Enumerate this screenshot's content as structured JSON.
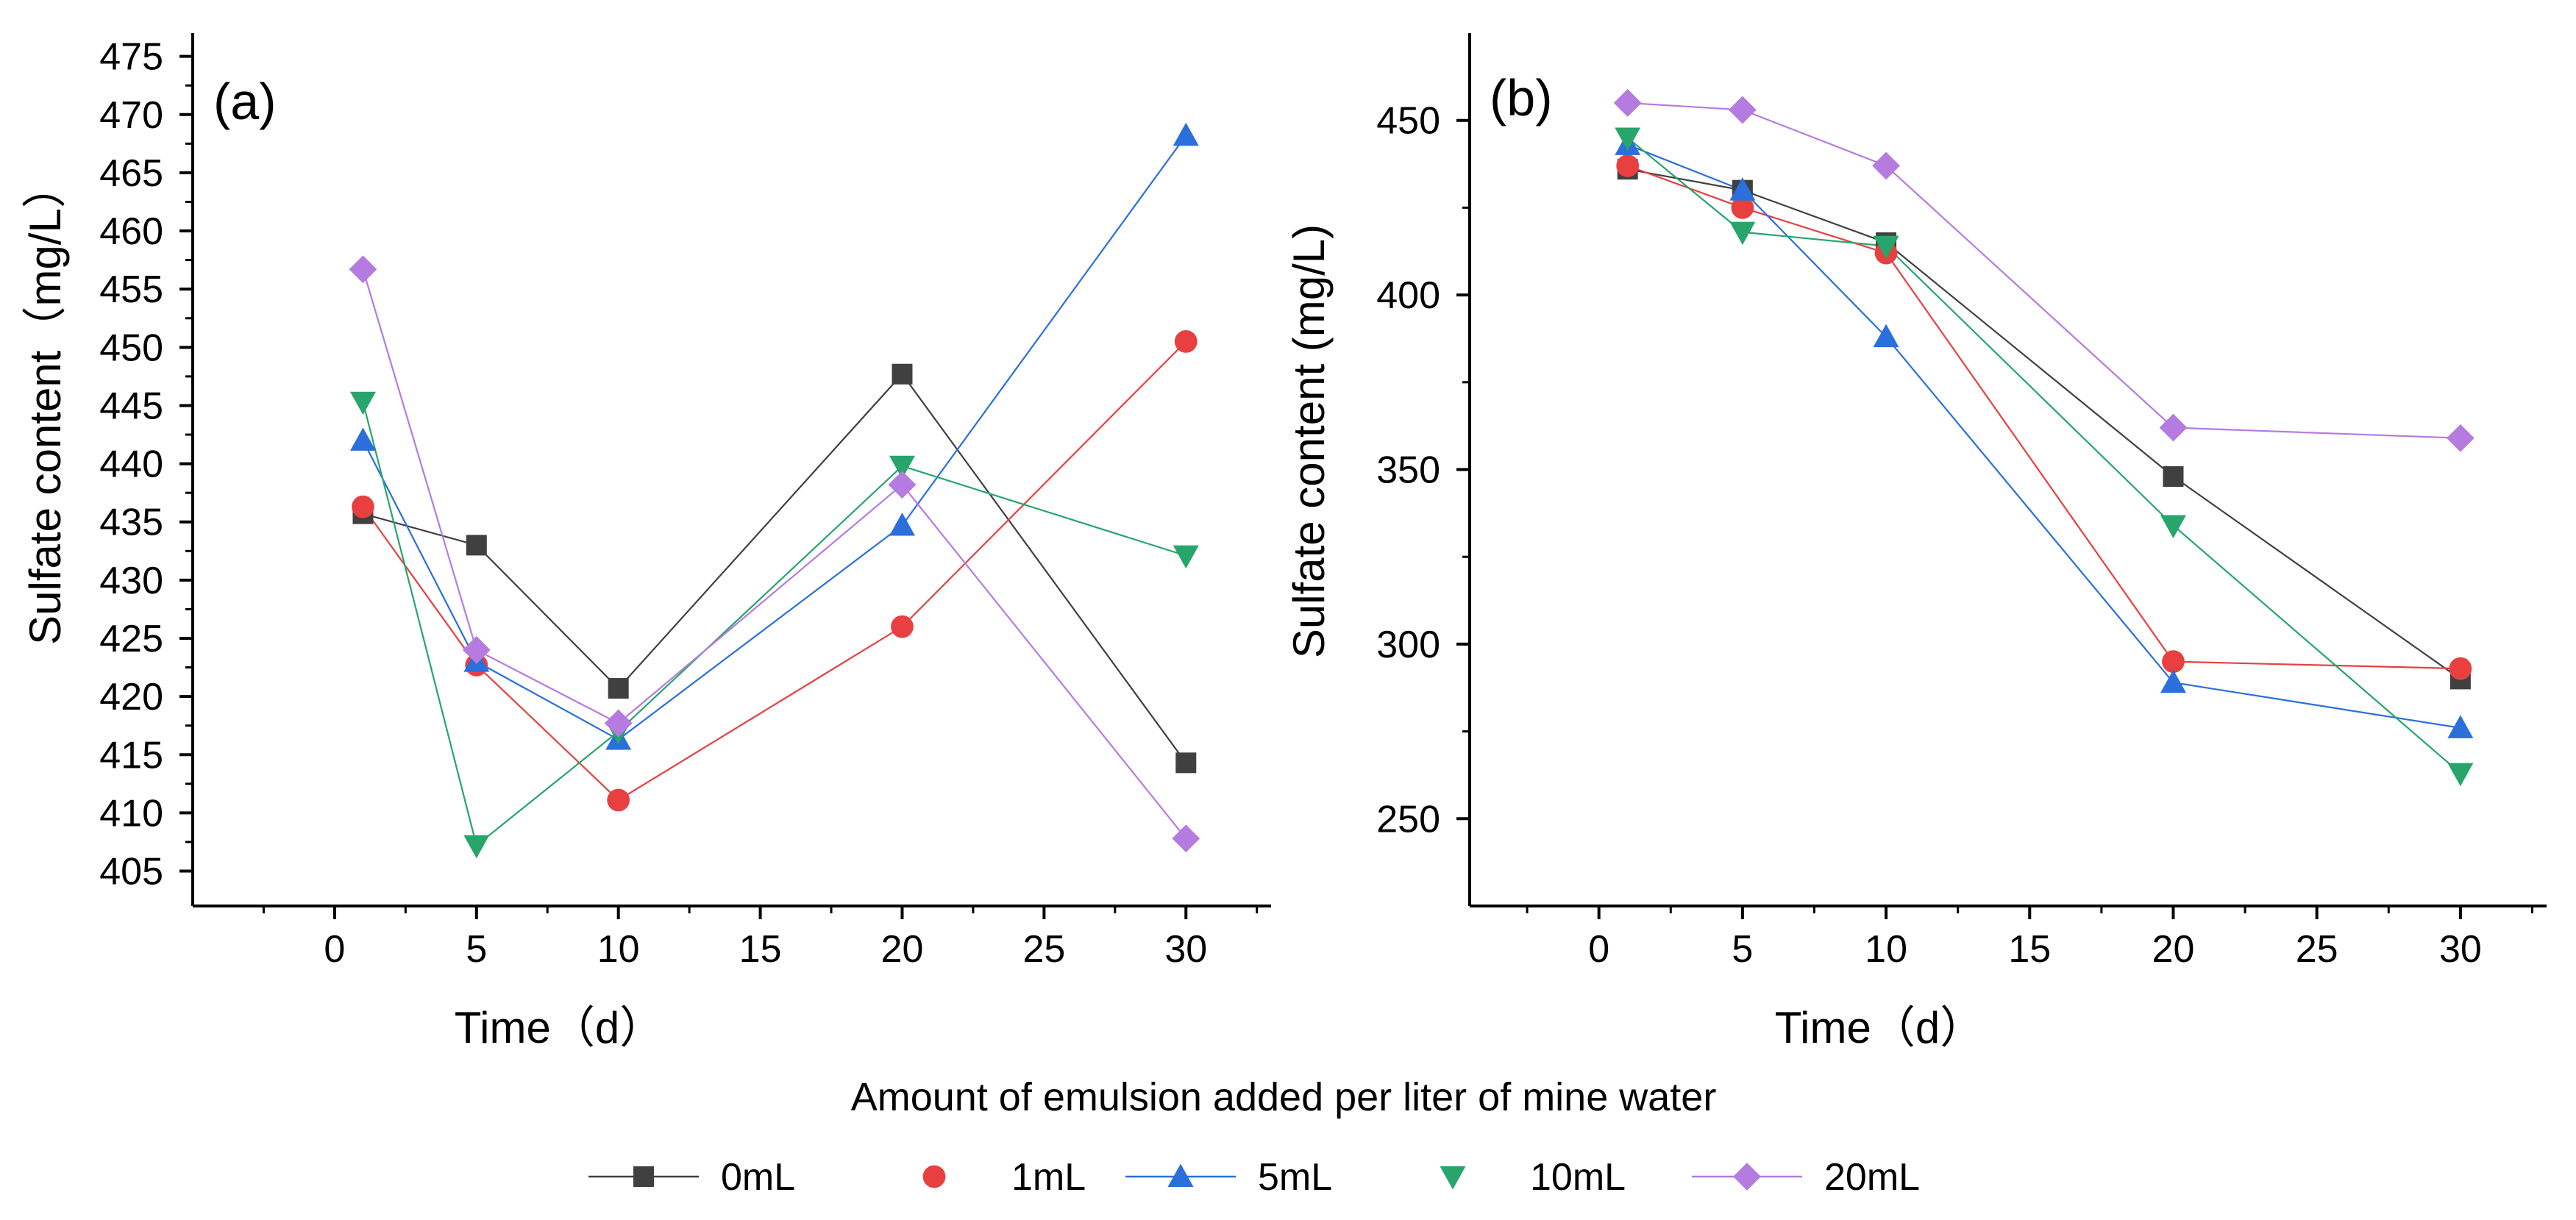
{
  "legend": {
    "title": "Amount of emulsion added per liter of mine water",
    "entries": [
      {
        "label": "0mL",
        "color": "#404040",
        "marker": "square",
        "line": true
      },
      {
        "label": "1mL",
        "color": "#e84040",
        "marker": "circle",
        "line": false
      },
      {
        "label": "5mL",
        "color": "#2a6fdb",
        "marker": "triangle-up",
        "line": true
      },
      {
        "label": "10mL",
        "color": "#27a56b",
        "marker": "triangle-down",
        "line": false
      },
      {
        "label": "20mL",
        "color": "#b57be0",
        "marker": "diamond",
        "line": true
      }
    ]
  },
  "chart_data": [
    {
      "type": "line",
      "panel_label": "(a)",
      "xlabel": "Time（d）",
      "ylabel": "Sulfate content（mg/L）",
      "x": [
        1,
        5,
        10,
        20,
        30
      ],
      "xlim": [
        -5,
        33
      ],
      "xticks": [
        "0",
        "5",
        "10",
        "15",
        "20",
        "25",
        "30"
      ],
      "ylim": [
        402,
        477
      ],
      "yticks": [
        "405",
        "410",
        "415",
        "420",
        "425",
        "430",
        "435",
        "440",
        "445",
        "450",
        "455",
        "460",
        "465",
        "470",
        "475"
      ],
      "series": [
        {
          "name": "0mL",
          "values": [
            435.7,
            433.0,
            420.7,
            447.7,
            414.3
          ]
        },
        {
          "name": "1mL",
          "values": [
            436.3,
            422.7,
            411.1,
            426.0,
            450.5
          ]
        },
        {
          "name": "5mL",
          "values": [
            442.0,
            423.0,
            416.3,
            434.7,
            468.2
          ]
        },
        {
          "name": "10mL",
          "values": [
            445.3,
            407.2,
            417.0,
            439.8,
            432.1
          ]
        },
        {
          "name": "20mL",
          "values": [
            456.7,
            424.0,
            417.7,
            438.2,
            407.8
          ]
        }
      ]
    },
    {
      "type": "line",
      "panel_label": "(b)",
      "xlabel": "Time（d）",
      "ylabel": "Sulfate content (mg/L)",
      "x": [
        1,
        5,
        10,
        20,
        30
      ],
      "xlim": [
        -4.5,
        33
      ],
      "xticks": [
        "0",
        "5",
        "10",
        "15",
        "20",
        "25",
        "30"
      ],
      "ylim": [
        225,
        475
      ],
      "yticks": [
        "250",
        "300",
        "350",
        "400",
        "450"
      ],
      "series": [
        {
          "name": "0mL",
          "values": [
            436,
            430,
            415,
            348,
            290
          ]
        },
        {
          "name": "1mL",
          "values": [
            437,
            425,
            412,
            295,
            293
          ]
        },
        {
          "name": "5mL",
          "values": [
            443,
            430,
            388,
            289,
            276
          ]
        },
        {
          "name": "10mL",
          "values": [
            445,
            418,
            414,
            334,
            263
          ]
        },
        {
          "name": "20mL",
          "values": [
            455,
            453,
            437,
            362,
            359
          ]
        }
      ]
    }
  ]
}
